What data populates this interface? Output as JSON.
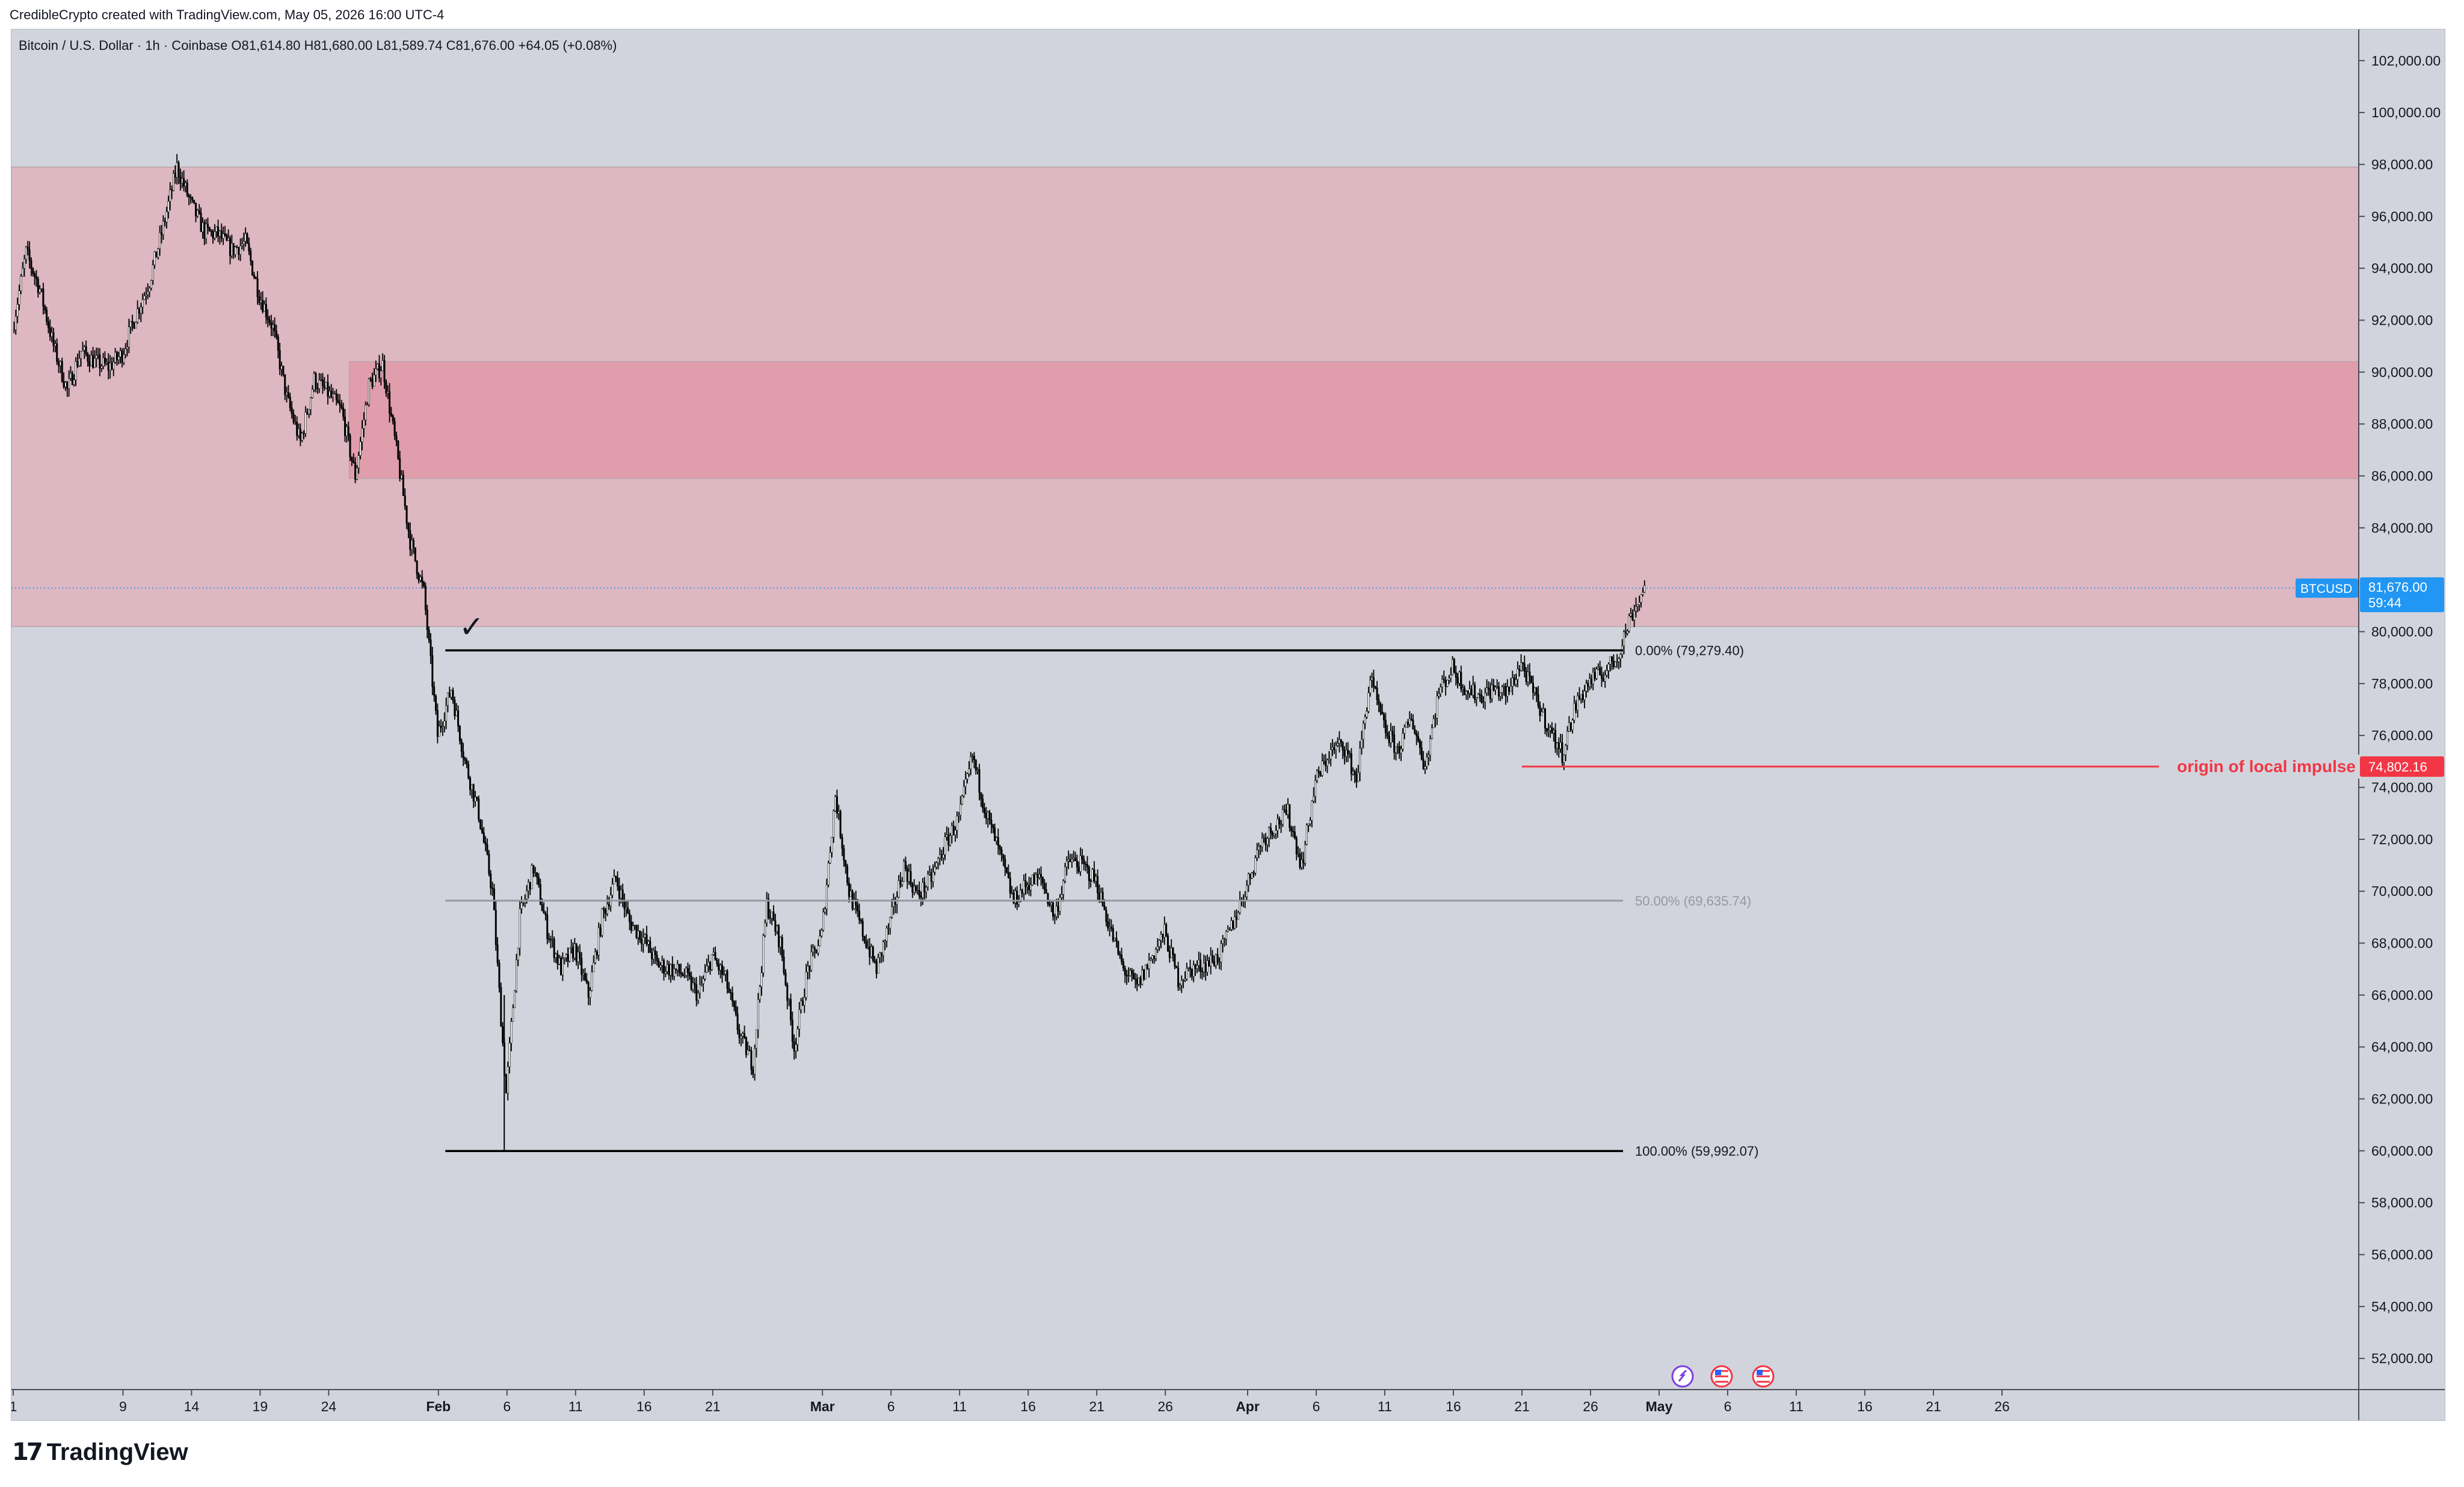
{
  "credit": "CredibleCrypto created with TradingView.com, May 05, 2026 16:00 UTC-4",
  "brand": {
    "mark": "17",
    "name": "TradingView"
  },
  "chart_data": {
    "type": "candlestick",
    "symbol_info": {
      "name": "Bitcoin / U.S. Dollar · 1h · Coinbase",
      "open_label": "O",
      "open": "81,614.80",
      "high_label": "H",
      "high": "81,680.00",
      "low_label": "L",
      "low": "81,589.74",
      "close_label": "C",
      "close": "81,676.00",
      "change": "+64.05 (+0.08%)"
    },
    "ylim": [
      50800,
      103200
    ],
    "y_ticks": [
      {
        "v": 52000,
        "label": "52,000.00"
      },
      {
        "v": 54000,
        "label": "54,000.00"
      },
      {
        "v": 56000,
        "label": "56,000.00"
      },
      {
        "v": 58000,
        "label": "58,000.00"
      },
      {
        "v": 60000,
        "label": "60,000.00"
      },
      {
        "v": 62000,
        "label": "62,000.00"
      },
      {
        "v": 64000,
        "label": "64,000.00"
      },
      {
        "v": 66000,
        "label": "66,000.00"
      },
      {
        "v": 68000,
        "label": "68,000.00"
      },
      {
        "v": 70000,
        "label": "70,000.00"
      },
      {
        "v": 72000,
        "label": "72,000.00"
      },
      {
        "v": 74000,
        "label": "74,000.00"
      },
      {
        "v": 76000,
        "label": "76,000.00"
      },
      {
        "v": 78000,
        "label": "78,000.00"
      },
      {
        "v": 80000,
        "label": "80,000.00"
      },
      {
        "v": 84000,
        "label": "84,000.00"
      },
      {
        "v": 86000,
        "label": "86,000.00"
      },
      {
        "v": 88000,
        "label": "88,000.00"
      },
      {
        "v": 90000,
        "label": "90,000.00"
      },
      {
        "v": 92000,
        "label": "92,000.00"
      },
      {
        "v": 94000,
        "label": "94,000.00"
      },
      {
        "v": 96000,
        "label": "96,000.00"
      },
      {
        "v": 98000,
        "label": "98,000.00"
      },
      {
        "v": 100000,
        "label": "100,000.00"
      },
      {
        "v": 102000,
        "label": "102,000.00"
      }
    ],
    "x_range_days": [
      0,
      149
    ],
    "x_ticks": [
      {
        "d": 0,
        "label": "1",
        "bold": false
      },
      {
        "d": 8,
        "label": "9",
        "bold": false
      },
      {
        "d": 13,
        "label": "14",
        "bold": false
      },
      {
        "d": 18,
        "label": "19",
        "bold": false
      },
      {
        "d": 23,
        "label": "24",
        "bold": false
      },
      {
        "d": 31,
        "label": "Feb",
        "bold": true
      },
      {
        "d": 36,
        "label": "6",
        "bold": false
      },
      {
        "d": 41,
        "label": "11",
        "bold": false
      },
      {
        "d": 46,
        "label": "16",
        "bold": false
      },
      {
        "d": 51,
        "label": "21",
        "bold": false
      },
      {
        "d": 59,
        "label": "Mar",
        "bold": true
      },
      {
        "d": 64,
        "label": "6",
        "bold": false
      },
      {
        "d": 69,
        "label": "11",
        "bold": false
      },
      {
        "d": 74,
        "label": "16",
        "bold": false
      },
      {
        "d": 79,
        "label": "21",
        "bold": false
      },
      {
        "d": 84,
        "label": "26",
        "bold": false
      },
      {
        "d": 90,
        "label": "Apr",
        "bold": true
      },
      {
        "d": 95,
        "label": "6",
        "bold": false
      },
      {
        "d": 100,
        "label": "11",
        "bold": false
      },
      {
        "d": 105,
        "label": "16",
        "bold": false
      },
      {
        "d": 110,
        "label": "21",
        "bold": false
      },
      {
        "d": 115,
        "label": "26",
        "bold": false
      },
      {
        "d": 120,
        "label": "May",
        "bold": true
      },
      {
        "d": 125,
        "label": "6",
        "bold": false
      },
      {
        "d": 130,
        "label": "11",
        "bold": false
      },
      {
        "d": 135,
        "label": "16",
        "bold": false
      },
      {
        "d": 140,
        "label": "21",
        "bold": false
      },
      {
        "d": 145,
        "label": "26",
        "bold": false
      }
    ],
    "price_path": [
      [
        0,
        91600
      ],
      [
        1,
        94600
      ],
      [
        2,
        93200
      ],
      [
        3,
        91000
      ],
      [
        4,
        89300
      ],
      [
        5,
        90800
      ],
      [
        6,
        90400
      ],
      [
        7,
        90200
      ],
      [
        8,
        90700
      ],
      [
        9,
        92200
      ],
      [
        10,
        93500
      ],
      [
        11,
        95600
      ],
      [
        12,
        97900
      ],
      [
        13,
        96500
      ],
      [
        14,
        95400
      ],
      [
        15,
        95300
      ],
      [
        16,
        94700
      ],
      [
        17,
        95000
      ],
      [
        18,
        93000
      ],
      [
        19,
        91700
      ],
      [
        20,
        89000
      ],
      [
        21,
        87300
      ],
      [
        22,
        89700
      ],
      [
        23,
        89200
      ],
      [
        24,
        88500
      ],
      [
        25,
        86000
      ],
      [
        26,
        89500
      ],
      [
        27,
        90300
      ],
      [
        28,
        87000
      ],
      [
        29,
        83500
      ],
      [
        30,
        81500
      ],
      [
        31,
        76000
      ],
      [
        32,
        77800
      ],
      [
        33,
        75000
      ],
      [
        34,
        73000
      ],
      [
        35,
        70000
      ],
      [
        36,
        62200
      ],
      [
        37,
        69000
      ],
      [
        38,
        70900
      ],
      [
        39,
        68500
      ],
      [
        40,
        67000
      ],
      [
        41,
        67800
      ],
      [
        42,
        66000
      ],
      [
        43,
        69000
      ],
      [
        44,
        70500
      ],
      [
        45,
        68800
      ],
      [
        46,
        68200
      ],
      [
        47,
        67200
      ],
      [
        48,
        67000
      ],
      [
        49,
        66800
      ],
      [
        50,
        66000
      ],
      [
        51,
        67500
      ],
      [
        52,
        66600
      ],
      [
        53,
        64500
      ],
      [
        54,
        63300
      ],
      [
        55,
        69500
      ],
      [
        56,
        68000
      ],
      [
        57,
        64000
      ],
      [
        58,
        67000
      ],
      [
        59,
        68300
      ],
      [
        60,
        73700
      ],
      [
        61,
        70000
      ],
      [
        62,
        68400
      ],
      [
        63,
        67000
      ],
      [
        64,
        68800
      ],
      [
        65,
        71000
      ],
      [
        66,
        69800
      ],
      [
        67,
        70500
      ],
      [
        68,
        71800
      ],
      [
        69,
        72800
      ],
      [
        70,
        75200
      ],
      [
        71,
        73000
      ],
      [
        72,
        71400
      ],
      [
        73,
        69600
      ],
      [
        74,
        70300
      ],
      [
        75,
        70500
      ],
      [
        76,
        69000
      ],
      [
        77,
        71200
      ],
      [
        78,
        71000
      ],
      [
        79,
        70400
      ],
      [
        80,
        68600
      ],
      [
        81,
        67000
      ],
      [
        82,
        66300
      ],
      [
        83,
        67400
      ],
      [
        84,
        68400
      ],
      [
        85,
        66600
      ],
      [
        86,
        67000
      ],
      [
        87,
        67200
      ],
      [
        88,
        67500
      ],
      [
        89,
        68800
      ],
      [
        90,
        70200
      ],
      [
        91,
        71900
      ],
      [
        92,
        72500
      ],
      [
        93,
        73000
      ],
      [
        94,
        71000
      ],
      [
        95,
        74200
      ],
      [
        96,
        75300
      ],
      [
        97,
        75700
      ],
      [
        98,
        74300
      ],
      [
        99,
        78200
      ],
      [
        100,
        76300
      ],
      [
        101,
        75400
      ],
      [
        102,
        76700
      ],
      [
        103,
        74800
      ],
      [
        104,
        77700
      ],
      [
        105,
        78600
      ],
      [
        106,
        77800
      ],
      [
        107,
        77500
      ],
      [
        108,
        77800
      ],
      [
        109,
        77600
      ],
      [
        110,
        78800
      ],
      [
        111,
        77500
      ],
      [
        112,
        76300
      ],
      [
        113,
        75300
      ],
      [
        114,
        77200
      ],
      [
        115,
        78100
      ],
      [
        116,
        78400
      ],
      [
        117,
        79000
      ],
      [
        118,
        80600
      ],
      [
        119,
        81676
      ]
    ],
    "zones": [
      {
        "name": "supply-zone-outer",
        "from": 80200,
        "to": 97900,
        "color": "#e4a8b3"
      },
      {
        "name": "supply-zone-inner",
        "from": 85900,
        "to": 90400,
        "color": "#e28f9f",
        "start_day": 24.5
      }
    ],
    "fib_retracement": {
      "start_day": 31.5,
      "end_day": 95,
      "levels": [
        {
          "pct": "0.00%",
          "value": 79279.4,
          "label": "0.00% (79,279.40)",
          "color": "#000000"
        },
        {
          "pct": "50.00%",
          "value": 69635.74,
          "label": "50.00% (69,635.74)",
          "color": "#9598a1"
        },
        {
          "pct": "100.00%",
          "value": 59992.07,
          "label": "100.00% (59,992.07)",
          "color": "#000000"
        }
      ]
    },
    "annotations": [
      {
        "name": "origin-line",
        "value": 74802.16,
        "label": "origin of local impulse",
        "price_label": "74,802.16",
        "color": "#f23645",
        "start_day": 110
      }
    ],
    "current_price": {
      "symbol": "BTCUSD",
      "price": "81,676.00",
      "countdown": "59:44",
      "value": 81676.0,
      "color": "#2196f3"
    },
    "checkmark": "✓",
    "event_icons": [
      "crypto-event-icon",
      "us-flag-event-icon",
      "us-flag-event-icon"
    ]
  }
}
